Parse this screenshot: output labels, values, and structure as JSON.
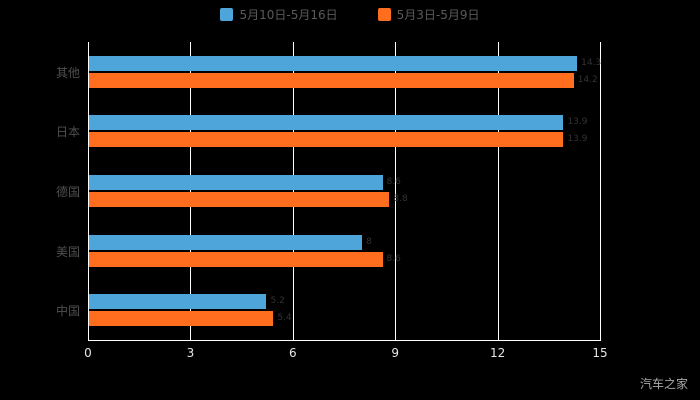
{
  "watermark": "汽车之家",
  "chart_data": {
    "type": "bar",
    "orientation": "horizontal",
    "title": "",
    "xlabel": "",
    "ylabel": "",
    "categories": [
      "其他",
      "日本",
      "德国",
      "美国",
      "中国"
    ],
    "series": [
      {
        "name": "5月10日-5月16日",
        "color": "#4EA5D9",
        "values": [
          14.3,
          13.9,
          8.6,
          8.0,
          5.2
        ]
      },
      {
        "name": "5月3日-5月9日",
        "color": "#FF6D1F",
        "values": [
          14.2,
          13.9,
          8.8,
          8.6,
          5.4
        ]
      }
    ],
    "xlim": [
      0,
      15
    ],
    "xticks": [
      0,
      3,
      6,
      9,
      12,
      15
    ],
    "grid": true,
    "legend_position": "top",
    "background": "#000000"
  }
}
